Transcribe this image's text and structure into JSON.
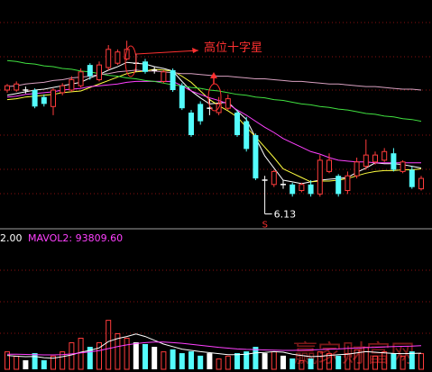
{
  "chart_data": {
    "type": "candlestick",
    "open": [
      7.56,
      7.56,
      7.56,
      7.56,
      7.48,
      7.37,
      7.53,
      7.56,
      7.61,
      7.85,
      7.68,
      7.82,
      7.87,
      7.92,
      7.87,
      7.89,
      7.79,
      7.66,
      7.79,
      7.61,
      7.3,
      7.4,
      7.35,
      7.3,
      7.35,
      7.3,
      7.2,
      7.04,
      6.52,
      6.47,
      6.47,
      6.47,
      6.4,
      6.47,
      6.36,
      6.62,
      6.57,
      6.4,
      6.57,
      6.68,
      6.73,
      6.75,
      6.83,
      6.62,
      6.64,
      6.42
    ],
    "high": [
      7.63,
      7.66,
      7.6,
      7.58,
      7.51,
      7.58,
      7.64,
      7.72,
      7.81,
      7.87,
      7.89,
      8.08,
      8.03,
      8.13,
      7.98,
      7.92,
      7.83,
      7.79,
      7.81,
      7.64,
      7.33,
      7.43,
      7.46,
      7.48,
      7.51,
      7.33,
      7.25,
      7.06,
      6.57,
      6.64,
      6.52,
      6.49,
      6.49,
      6.52,
      6.81,
      6.83,
      6.59,
      6.62,
      6.78,
      6.99,
      6.85,
      6.89,
      6.89,
      6.75,
      6.68,
      6.57
    ],
    "low": [
      7.53,
      7.54,
      7.52,
      7.35,
      7.37,
      7.27,
      7.5,
      7.54,
      7.59,
      7.68,
      7.66,
      7.79,
      7.85,
      7.9,
      7.77,
      7.75,
      7.75,
      7.64,
      7.54,
      7.33,
      7.02,
      7.16,
      7.27,
      7.27,
      7.33,
      7.02,
      6.85,
      6.52,
      6.13,
      6.44,
      6.42,
      6.33,
      6.38,
      6.33,
      6.33,
      6.6,
      6.33,
      6.36,
      6.54,
      6.64,
      6.7,
      6.73,
      6.62,
      6.6,
      6.42,
      6.4
    ],
    "close": [
      7.61,
      7.63,
      7.56,
      7.37,
      7.4,
      7.56,
      7.61,
      7.68,
      7.77,
      7.72,
      7.85,
      8.03,
      8.0,
      8.03,
      7.87,
      7.77,
      7.79,
      7.77,
      7.56,
      7.35,
      7.04,
      7.2,
      7.35,
      7.4,
      7.46,
      7.04,
      6.88,
      6.54,
      6.52,
      6.62,
      6.47,
      6.36,
      6.47,
      6.36,
      6.75,
      6.75,
      6.36,
      6.57,
      6.73,
      6.81,
      6.81,
      6.85,
      6.64,
      6.73,
      6.44,
      6.54
    ],
    "up_color": "#ff3c3c",
    "down_color": "#54fcfc",
    "flat_color": "#ffffff",
    "ylim": [
      6.0,
      8.6
    ],
    "ma": [
      {
        "color": "#ffffff",
        "values": [
          7.5,
          7.52,
          7.54,
          7.56,
          7.57,
          7.59,
          7.61,
          7.63,
          7.65,
          7.7,
          7.74,
          7.79,
          7.83,
          7.88,
          7.87,
          7.86,
          7.83,
          7.81,
          7.78,
          7.66,
          7.55,
          7.47,
          7.4,
          7.41,
          7.42,
          7.32,
          7.22,
          7.01,
          6.8,
          6.66,
          6.52,
          6.5,
          6.48,
          6.5,
          6.52,
          6.53,
          6.54,
          6.55,
          6.61,
          6.66,
          6.72,
          6.71,
          6.71,
          6.7,
          6.68,
          6.66
        ]
      },
      {
        "color": "#ffff40",
        "values": [
          7.45,
          7.46,
          7.48,
          7.49,
          7.5,
          7.51,
          7.53,
          7.54,
          7.55,
          7.59,
          7.63,
          7.67,
          7.71,
          7.75,
          7.77,
          7.78,
          7.8,
          7.79,
          7.78,
          7.72,
          7.65,
          7.55,
          7.45,
          7.38,
          7.32,
          7.25,
          7.13,
          7.02,
          6.9,
          6.78,
          6.65,
          6.6,
          6.55,
          6.5,
          6.51,
          6.51,
          6.52,
          6.54,
          6.57,
          6.6,
          6.62,
          6.63,
          6.63,
          6.64,
          6.64,
          6.65
        ]
      },
      {
        "color": "#ff40ff",
        "values": [
          7.48,
          7.49,
          7.51,
          7.52,
          7.53,
          7.54,
          7.56,
          7.57,
          7.58,
          7.6,
          7.61,
          7.62,
          7.63,
          7.65,
          7.66,
          7.66,
          7.66,
          7.66,
          7.66,
          7.61,
          7.55,
          7.51,
          7.47,
          7.44,
          7.4,
          7.33,
          7.27,
          7.2,
          7.13,
          7.07,
          7.0,
          6.95,
          6.9,
          6.85,
          6.82,
          6.78,
          6.75,
          6.74,
          6.73,
          6.73,
          6.72,
          6.72,
          6.72,
          6.72,
          6.72,
          6.72
        ]
      },
      {
        "color": "#40e040",
        "values": [
          7.9,
          7.89,
          7.87,
          7.86,
          7.84,
          7.83,
          7.81,
          7.8,
          7.78,
          7.77,
          7.75,
          7.73,
          7.72,
          7.7,
          7.69,
          7.67,
          7.66,
          7.64,
          7.62,
          7.61,
          7.59,
          7.58,
          7.56,
          7.55,
          7.53,
          7.51,
          7.5,
          7.48,
          7.47,
          7.45,
          7.44,
          7.42,
          7.4,
          7.39,
          7.37,
          7.36,
          7.34,
          7.33,
          7.31,
          7.29,
          7.28,
          7.26,
          7.25,
          7.23,
          7.22,
          7.2
        ]
      },
      {
        "color": "#d8a0c0",
        "values": [
          7.6,
          7.61,
          7.63,
          7.64,
          7.65,
          7.67,
          7.68,
          7.7,
          7.71,
          7.72,
          7.74,
          7.75,
          7.77,
          7.78,
          7.79,
          7.78,
          7.78,
          7.77,
          7.76,
          7.75,
          7.75,
          7.74,
          7.73,
          7.72,
          7.72,
          7.71,
          7.7,
          7.69,
          7.69,
          7.68,
          7.67,
          7.66,
          7.66,
          7.65,
          7.64,
          7.63,
          7.63,
          7.62,
          7.61,
          7.6,
          7.6,
          7.59,
          7.58,
          7.57,
          7.57,
          7.56
        ]
      }
    ],
    "annotation": "高位十字星",
    "signal": "S",
    "volume": {
      "values": [
        71000,
        54000,
        36000,
        64000,
        36000,
        54000,
        71000,
        107000,
        125000,
        89000,
        107000,
        196000,
        143000,
        125000,
        107000,
        100000,
        89000,
        71000,
        79000,
        64000,
        71000,
        54000,
        64000,
        43000,
        54000,
        64000,
        71000,
        89000,
        64000,
        71000,
        54000,
        43000,
        36000,
        43000,
        71000,
        64000,
        54000,
        64000,
        79000,
        89000,
        54000,
        71000,
        64000,
        54000,
        71000,
        64000
      ],
      "ylim": [
        0,
        500000
      ],
      "labels": [
        "2.00",
        "MAVOL2: 93809.60"
      ],
      "ma": [
        {
          "color": "#ffffff",
          "values": [
            55000,
            52000,
            50000,
            51000,
            46000,
            44000,
            50000,
            57000,
            68000,
            75000,
            85000,
            110000,
            122000,
            130000,
            140000,
            130000,
            115000,
            100000,
            90000,
            80000,
            75000,
            70000,
            66000,
            62000,
            58000,
            58000,
            60000,
            65000,
            67000,
            70000,
            68000,
            60000,
            55000,
            50000,
            52000,
            55000,
            58000,
            60000,
            65000,
            70000,
            68000,
            65000,
            63000,
            62000,
            63000,
            64000
          ]
        },
        {
          "color": "#ff40ff",
          "values": [
            60000,
            60000,
            59000,
            58000,
            57000,
            57000,
            58000,
            61000,
            65000,
            69000,
            74000,
            82000,
            90000,
            97000,
            102000,
            106000,
            108000,
            108000,
            106000,
            103000,
            99000,
            95000,
            91000,
            87000,
            84000,
            81000,
            79000,
            78000,
            77000,
            76000,
            75000,
            75000,
            76000,
            77000,
            78000,
            80000,
            81000,
            83000,
            84000,
            86000,
            87000,
            89000,
            90000,
            91000,
            92000,
            93809.6
          ]
        }
      ]
    }
  },
  "watermark": "赢家财富网"
}
